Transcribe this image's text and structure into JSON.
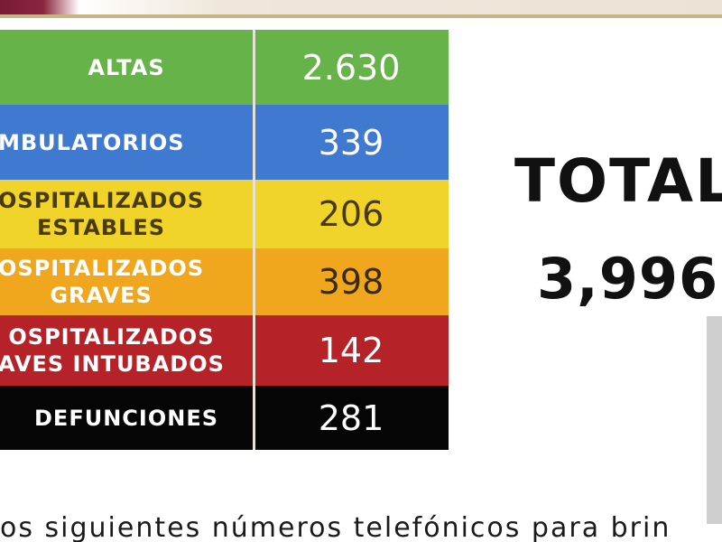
{
  "table": {
    "rows": [
      {
        "label": "ALTAS",
        "value": "2.630",
        "bg": "#66b34a",
        "fg": "#ffffff",
        "value_fg": "#ffffff"
      },
      {
        "label": "MBULATORIOS",
        "value": "339",
        "bg": "#3f79d0",
        "fg": "#ffffff",
        "value_fg": "#ffffff"
      },
      {
        "label": "OSPITALIZADOS\nESTABLES",
        "value": "206",
        "bg": "#f0d42a",
        "fg": "#4a3a10",
        "value_fg": "#4a3a10"
      },
      {
        "label": "OSPITALIZADOS\nGRAVES",
        "value": "398",
        "bg": "#f0a71d",
        "fg": "#ffffff",
        "value_fg": "#3a2a10"
      },
      {
        "label": "OSPITALIZADOS\nAVES INTUBADOS",
        "value": "142",
        "bg": "#b52228",
        "fg": "#ffffff",
        "value_fg": "#ffffff"
      },
      {
        "label": "DEFUNCIONES",
        "value": "281",
        "bg": "#050505",
        "fg": "#ffffff",
        "value_fg": "#ffffff"
      }
    ]
  },
  "total": {
    "title": "TOTAL",
    "value": "3,996"
  },
  "footer": {
    "text": "os siguientes números telefónicos para brin"
  }
}
